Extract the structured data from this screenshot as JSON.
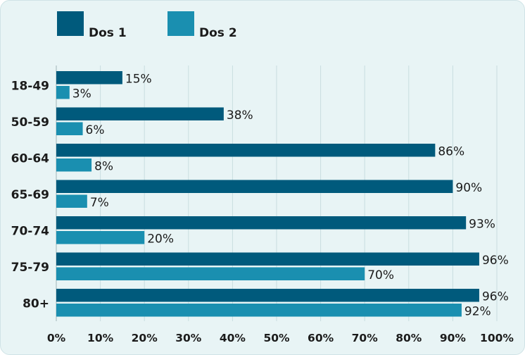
{
  "chart_data": {
    "type": "bar",
    "orientation": "horizontal",
    "categories": [
      "18-49",
      "50-59",
      "60-64",
      "65-69",
      "70-74",
      "75-79",
      "80+"
    ],
    "series": [
      {
        "name": "Dos 1",
        "color": "#005a7c",
        "values": [
          15,
          38,
          86,
          90,
          93,
          96,
          96
        ]
      },
      {
        "name": "Dos 2",
        "color": "#1a8fb0",
        "values": [
          3,
          6,
          8,
          7,
          20,
          70,
          92
        ]
      }
    ],
    "xlim": [
      0,
      100
    ],
    "xticks": [
      "0%",
      "10%",
      "20%",
      "30%",
      "40%",
      "50%",
      "60%",
      "70%",
      "80%",
      "90%",
      "100%"
    ],
    "value_suffix": "%",
    "grid": "vertical",
    "legend_position": "top-left",
    "title": "",
    "xlabel": "",
    "ylabel": ""
  }
}
